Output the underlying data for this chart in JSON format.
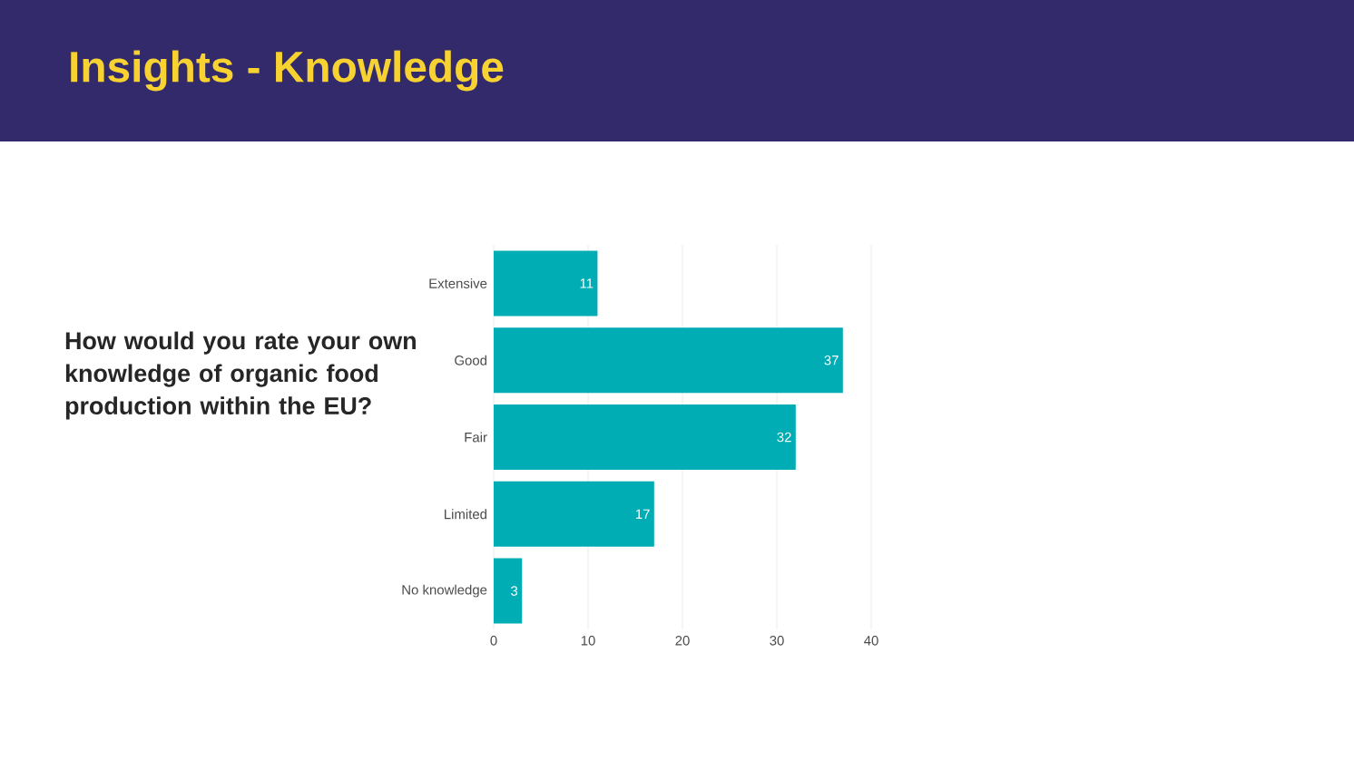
{
  "chart_data": {
    "type": "bar",
    "orientation": "horizontal",
    "title": "Insights -  Knowledge",
    "subtitle": "How would you rate your own knowledge of organic food production within the EU?",
    "categories": [
      "Extensive",
      "Good",
      "Fair",
      "Limited",
      "No knowledge"
    ],
    "values": [
      11,
      37,
      32,
      17,
      3
    ],
    "color": "#00adb5",
    "xlim": [
      0,
      40
    ],
    "xticks": [
      0,
      10,
      20,
      30,
      40
    ],
    "grid": "x",
    "data_labels": true
  }
}
